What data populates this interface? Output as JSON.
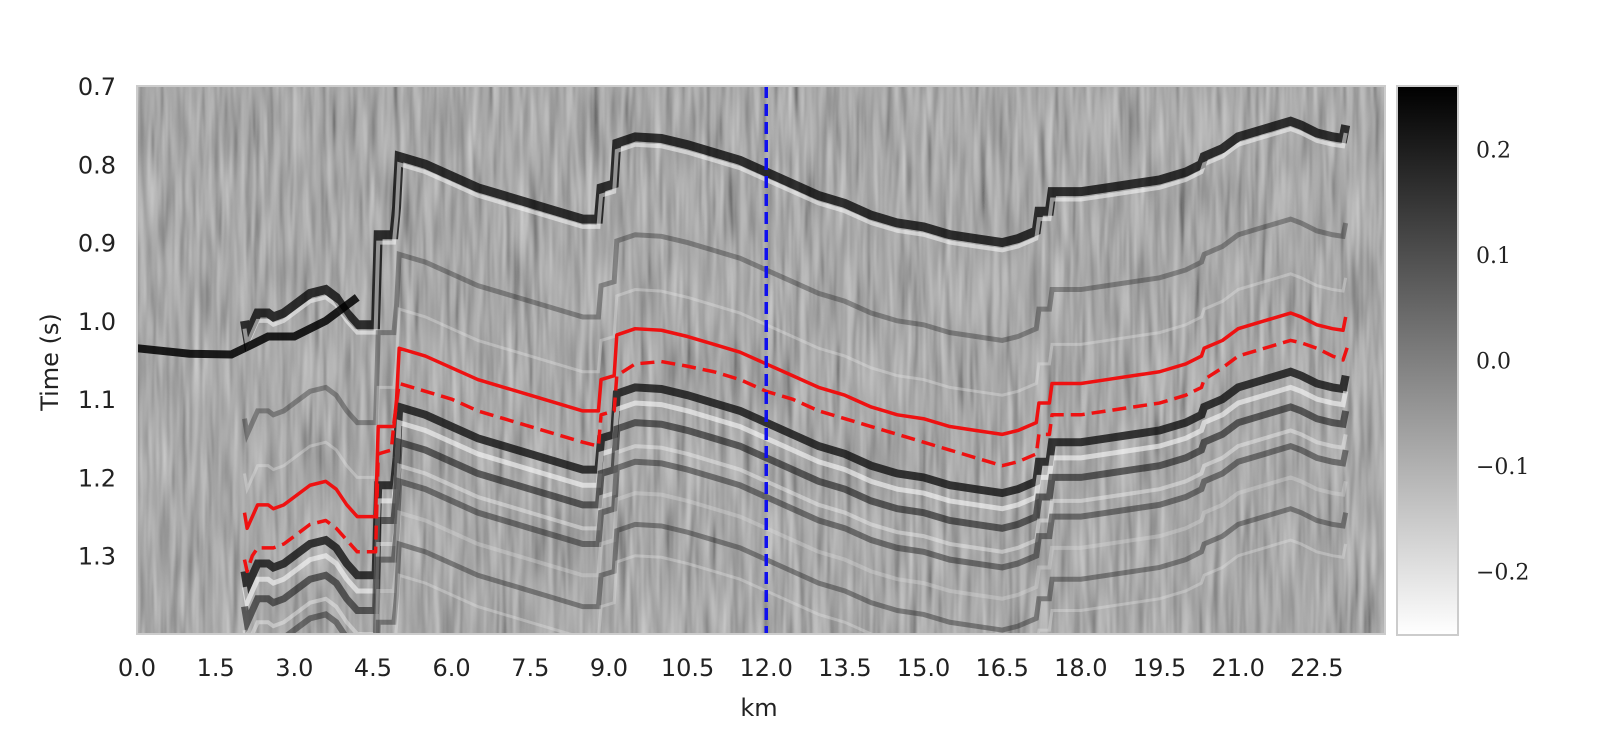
{
  "chart_data": {
    "type": "heatmap",
    "xlabel": "km",
    "ylabel": "Time (s)",
    "xlim": [
      0.0,
      23.8
    ],
    "ylim": [
      1.4,
      0.7
    ],
    "x_ticks": [
      "0.0",
      "1.5",
      "3.0",
      "4.5",
      "6.0",
      "7.5",
      "9.0",
      "10.5",
      "12.0",
      "13.5",
      "15.0",
      "16.5",
      "18.0",
      "19.5",
      "21.0",
      "22.5"
    ],
    "y_ticks": [
      "0.7",
      "0.8",
      "0.9",
      "1.0",
      "1.1",
      "1.2",
      "1.3"
    ],
    "colorbar": {
      "range": [
        -0.26,
        0.26
      ],
      "ticks": [
        "0.2",
        "0.1",
        "0.0",
        "−0.1",
        "−0.2"
      ],
      "colormap": "gray (white = negative, black = positive)"
    },
    "vertical_line": {
      "x": 12.0,
      "color": "#1010ee",
      "style": "dashed"
    },
    "series": [
      {
        "style": "solid",
        "color": "#ee1111",
        "x": [
          2.05,
          2.1,
          2.3,
          2.5,
          2.6,
          2.8,
          3.0,
          3.3,
          3.6,
          3.8,
          4.0,
          4.2,
          4.4,
          4.55,
          4.6,
          4.9,
          4.95,
          5.0,
          5.5,
          6.0,
          6.5,
          7.0,
          7.5,
          8.0,
          8.5,
          8.8,
          8.85,
          9.1,
          9.15,
          9.5,
          10.0,
          10.5,
          11.0,
          11.5,
          12.0,
          12.5,
          13.0,
          13.5,
          14.0,
          14.5,
          15.0,
          15.5,
          16.0,
          16.5,
          16.8,
          17.15,
          17.2,
          17.4,
          17.45,
          18.0,
          18.5,
          19.0,
          19.5,
          20.0,
          20.3,
          20.35,
          20.7,
          21.0,
          21.5,
          22.0,
          22.2,
          22.5,
          22.8,
          23.0,
          23.05
        ],
        "y": [
          1.245,
          1.265,
          1.235,
          1.235,
          1.24,
          1.235,
          1.225,
          1.21,
          1.205,
          1.215,
          1.235,
          1.25,
          1.25,
          1.25,
          1.135,
          1.135,
          1.1,
          1.035,
          1.045,
          1.06,
          1.075,
          1.085,
          1.095,
          1.105,
          1.115,
          1.115,
          1.075,
          1.07,
          1.018,
          1.01,
          1.012,
          1.02,
          1.03,
          1.04,
          1.055,
          1.07,
          1.085,
          1.095,
          1.11,
          1.12,
          1.125,
          1.135,
          1.14,
          1.145,
          1.14,
          1.13,
          1.105,
          1.105,
          1.08,
          1.08,
          1.075,
          1.07,
          1.065,
          1.055,
          1.045,
          1.035,
          1.025,
          1.01,
          1.0,
          0.99,
          0.995,
          1.005,
          1.01,
          1.012,
          0.995
        ]
      },
      {
        "style": "dashed",
        "color": "#ee1111",
        "x": [
          2.05,
          2.1,
          2.2,
          2.3,
          2.6,
          2.8,
          3.0,
          3.3,
          3.6,
          3.8,
          4.0,
          4.2,
          4.4,
          4.55,
          4.6,
          4.85,
          4.9,
          5.0,
          5.5,
          6.0,
          6.5,
          7.0,
          7.5,
          8.0,
          8.5,
          8.8,
          8.85,
          9.1,
          9.15,
          9.5,
          10.0,
          10.5,
          11.0,
          11.5,
          12.0,
          12.5,
          13.0,
          13.5,
          14.0,
          14.5,
          15.0,
          15.5,
          16.0,
          16.5,
          16.8,
          17.15,
          17.2,
          17.4,
          17.45,
          18.0,
          18.5,
          19.0,
          19.5,
          20.0,
          20.3,
          20.35,
          20.7,
          21.0,
          21.5,
          22.0,
          22.2,
          22.5,
          22.8,
          23.0,
          23.1
        ],
        "y": [
          1.305,
          1.32,
          1.3,
          1.29,
          1.29,
          1.285,
          1.275,
          1.26,
          1.255,
          1.265,
          1.28,
          1.295,
          1.295,
          1.295,
          1.17,
          1.165,
          1.13,
          1.08,
          1.09,
          1.1,
          1.115,
          1.125,
          1.135,
          1.145,
          1.155,
          1.16,
          1.12,
          1.115,
          1.07,
          1.055,
          1.052,
          1.058,
          1.065,
          1.075,
          1.09,
          1.1,
          1.115,
          1.125,
          1.135,
          1.145,
          1.155,
          1.165,
          1.175,
          1.185,
          1.18,
          1.17,
          1.145,
          1.145,
          1.12,
          1.12,
          1.115,
          1.11,
          1.105,
          1.095,
          1.085,
          1.075,
          1.06,
          1.045,
          1.035,
          1.025,
          1.028,
          1.035,
          1.045,
          1.05,
          1.03
        ]
      }
    ]
  }
}
